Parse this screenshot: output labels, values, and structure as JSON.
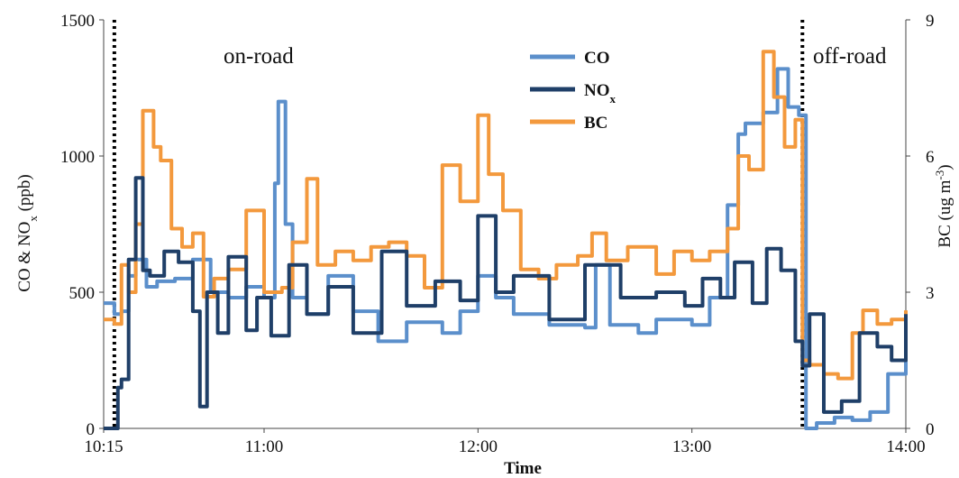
{
  "chart_data": {
    "type": "line",
    "xlabel": "Time",
    "ylabel_left": "CO & NOx (ppb)",
    "ylabel_right": "BC (ug m-3)",
    "x_range": [
      "10:15",
      "14:00"
    ],
    "x_ticks": [
      "10:15",
      "11:00",
      "12:00",
      "13:00",
      "14:00"
    ],
    "ylim_left": [
      0,
      1500
    ],
    "y_ticks_left": [
      "0",
      "500",
      "1000",
      "1500"
    ],
    "ylim_right": [
      0,
      9
    ],
    "y_ticks_right": [
      "0",
      "3",
      "6",
      "9"
    ],
    "legend_position": "top-center",
    "colors": {
      "CO": "#5b8fcb",
      "NOx": "#1f3f68",
      "BC": "#f3993d"
    },
    "annotations": [
      {
        "text": "on-road",
        "x": "10:35"
      },
      {
        "text": "off-road",
        "x": "13:50"
      }
    ],
    "vertical_markers": [
      "10:18",
      "13:31"
    ],
    "series": [
      {
        "name": "CO",
        "axis": "left",
        "x": [
          "10:15",
          "10:18",
          "10:20",
          "10:22",
          "10:24",
          "10:27",
          "10:30",
          "10:35",
          "10:40",
          "10:45",
          "10:50",
          "10:55",
          "11:00",
          "11:03",
          "11:04",
          "11:06",
          "11:08",
          "11:12",
          "11:18",
          "11:25",
          "11:32",
          "11:40",
          "11:50",
          "11:55",
          "12:00",
          "12:05",
          "12:10",
          "12:20",
          "12:30",
          "12:33",
          "12:37",
          "12:45",
          "12:50",
          "13:00",
          "13:05",
          "13:10",
          "13:13",
          "13:15",
          "13:20",
          "13:24",
          "13:27",
          "13:30",
          "13:32",
          "13:35",
          "13:40",
          "13:45",
          "13:50",
          "13:55",
          "14:00"
        ],
        "values": [
          460,
          420,
          430,
          560,
          620,
          520,
          540,
          550,
          620,
          500,
          480,
          520,
          480,
          900,
          1200,
          750,
          480,
          420,
          560,
          430,
          320,
          390,
          350,
          430,
          560,
          480,
          420,
          380,
          370,
          600,
          380,
          350,
          400,
          380,
          480,
          820,
          1080,
          1120,
          1160,
          1320,
          1180,
          1150,
          0,
          20,
          40,
          30,
          60,
          200,
          400
        ]
      },
      {
        "name": "NOx",
        "axis": "left",
        "x": [
          "10:15",
          "10:18",
          "10:19",
          "10:20",
          "10:22",
          "10:24",
          "10:26",
          "10:28",
          "10:32",
          "10:36",
          "10:40",
          "10:42",
          "10:44",
          "10:47",
          "10:50",
          "10:55",
          "10:58",
          "11:02",
          "11:07",
          "11:12",
          "11:18",
          "11:25",
          "11:33",
          "11:40",
          "11:48",
          "11:55",
          "12:00",
          "12:05",
          "12:10",
          "12:20",
          "12:30",
          "12:40",
          "12:50",
          "12:58",
          "13:03",
          "13:08",
          "13:12",
          "13:17",
          "13:21",
          "13:25",
          "13:29",
          "13:31",
          "13:33",
          "13:37",
          "13:42",
          "13:47",
          "13:52",
          "13:56",
          "14:00"
        ],
        "values": [
          0,
          0,
          150,
          180,
          620,
          920,
          580,
          560,
          650,
          610,
          430,
          80,
          500,
          350,
          630,
          360,
          480,
          340,
          600,
          420,
          520,
          350,
          650,
          450,
          540,
          470,
          780,
          500,
          560,
          400,
          600,
          480,
          500,
          450,
          550,
          480,
          610,
          460,
          660,
          580,
          320,
          230,
          420,
          60,
          100,
          350,
          300,
          250,
          420
        ]
      },
      {
        "name": "BC",
        "axis": "right",
        "x": [
          "10:15",
          "10:18",
          "10:20",
          "10:22",
          "10:24",
          "10:26",
          "10:29",
          "10:31",
          "10:34",
          "10:37",
          "10:40",
          "10:43",
          "10:46",
          "10:50",
          "10:55",
          "11:00",
          "11:05",
          "11:08",
          "11:12",
          "11:15",
          "11:20",
          "11:25",
          "11:30",
          "11:35",
          "11:40",
          "11:45",
          "11:50",
          "11:55",
          "12:00",
          "12:03",
          "12:07",
          "12:12",
          "12:17",
          "12:22",
          "12:28",
          "12:32",
          "12:36",
          "12:42",
          "12:50",
          "12:55",
          "13:00",
          "13:05",
          "13:10",
          "13:13",
          "13:16",
          "13:20",
          "13:23",
          "13:26",
          "13:29",
          "13:31",
          "13:33",
          "13:37",
          "13:41",
          "13:45",
          "13:48",
          "13:52",
          "13:56",
          "14:00"
        ],
        "values": [
          2.4,
          2.3,
          3.6,
          3.0,
          4.5,
          7.0,
          6.2,
          5.9,
          4.4,
          4.0,
          4.3,
          2.9,
          3.3,
          3.5,
          4.8,
          3.0,
          3.1,
          4.1,
          5.5,
          3.6,
          3.9,
          3.7,
          4.0,
          4.1,
          3.8,
          3.1,
          5.8,
          5.0,
          6.9,
          5.6,
          4.8,
          3.5,
          3.3,
          3.6,
          3.8,
          4.3,
          3.7,
          4.0,
          3.4,
          3.9,
          3.7,
          3.9,
          4.4,
          6.0,
          5.7,
          8.3,
          7.3,
          6.2,
          6.8,
          1.5,
          1.4,
          1.2,
          1.1,
          2.1,
          2.6,
          2.3,
          2.4,
          2.6
        ]
      }
    ]
  }
}
